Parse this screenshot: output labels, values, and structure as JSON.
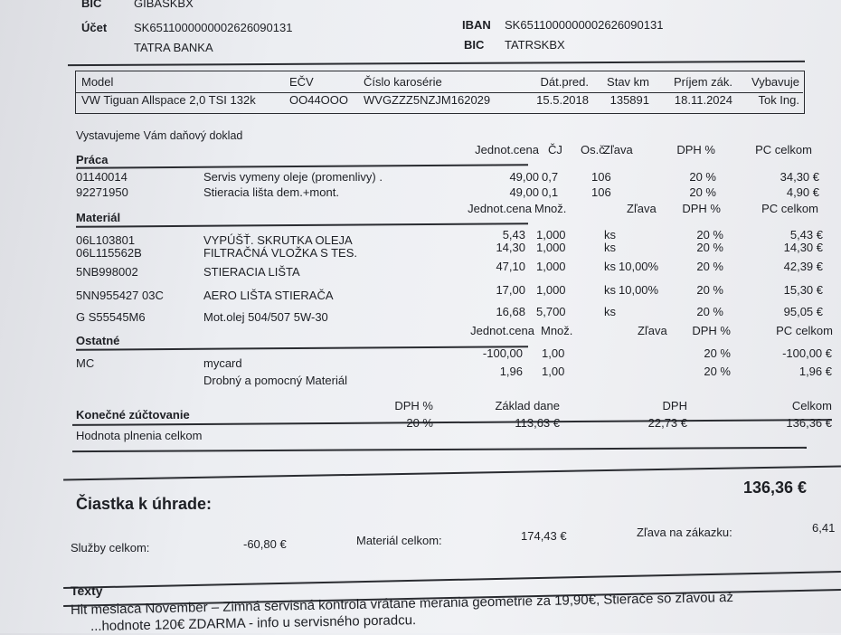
{
  "bank": {
    "bic_label": "BIC",
    "bic1": "GIBASKBX",
    "ucet_label": "Účet",
    "ucet": "SK6511000000002626090131",
    "bank_name": "TATRA BANKA",
    "iban_label": "IBAN",
    "iban": "SK6511000000002626090131",
    "bic2_label": "BIC",
    "bic2": "TATRSKBX"
  },
  "vehicle": {
    "headers": [
      "Model",
      "EČV",
      "Číslo karosérie",
      "Dát.pred.",
      "Stav km",
      "Príjem zák.",
      "Vybavuje"
    ],
    "values": [
      "VW Tiguan Allspace 2,0 TSI 132k",
      "OO44OOO",
      "WVGZZZ5NZJM162029",
      "15.5.2018",
      "135891",
      "18.11.2024",
      "Tok Ing."
    ]
  },
  "doc_title": "Vystavujeme Vám daňový doklad",
  "praca": {
    "title": "Práca",
    "headers": [
      "Jednot.cena",
      "ČJ",
      "Os.č.",
      "Zľava",
      "DPH %",
      "PC celkom"
    ],
    "rows": [
      [
        "01140014",
        "Servis vymeny oleje (promenlivy) .",
        "49,00",
        "0,7",
        "106",
        "",
        "20 %",
        "34,30 €"
      ],
      [
        "92271950",
        "Stieracia lišta dem.+mont.",
        "49,00",
        "0,1",
        "106",
        "",
        "20 %",
        "4,90 €"
      ]
    ]
  },
  "material": {
    "title": "Materiál",
    "headers": [
      "Jednot.cena",
      "Množ.",
      "Zľava",
      "DPH %",
      "PC celkom"
    ],
    "rows": [
      [
        "06L103801",
        "VYPÚŠŤ. SKRUTKA OLEJA",
        "5,43",
        "1,000",
        "ks",
        "",
        "20 %",
        "5,43 €"
      ],
      [
        "06L115562B",
        "FILTRAČNÁ VLOŽKA S TES.",
        "14,30",
        "1,000",
        "ks",
        "",
        "20 %",
        "14,30 €"
      ],
      [
        "5NB998002",
        "STIERACIA LIŠTA",
        "47,10",
        "1,000",
        "ks",
        "10,00%",
        "20 %",
        "42,39 €"
      ],
      [
        "5NN955427  03C",
        "AERO LIŠTA STIERAČA",
        "17,00",
        "1,000",
        "ks",
        "10,00%",
        "20 %",
        "15,30 €"
      ],
      [
        "G  S55545M6",
        "Mot.olej 504/507 5W-30",
        "16,68",
        "5,700",
        "ks",
        "",
        "20 %",
        "95,05 €"
      ]
    ]
  },
  "ostatne": {
    "title": "Ostatné",
    "headers": [
      "Jednot.cena",
      "Množ.",
      "Zľava",
      "DPH %",
      "PC celkom"
    ],
    "rows": [
      [
        "MC",
        "mycard",
        "-100,00",
        "1,00",
        "20 %",
        "-100,00 €"
      ],
      [
        "",
        "Drobný a pomocný Materiál",
        "1,96",
        "1,00",
        "20 %",
        "1,96 €"
      ]
    ]
  },
  "zuctovanie": {
    "title": "Konečné zúčtovanie",
    "headers": [
      "DPH %",
      "Základ dane",
      "DPH",
      "Celkom"
    ],
    "row_label": "Hodnota plnenia celkom",
    "values": [
      "20 %",
      "113,63 €",
      "22,73 €",
      "136,36 €"
    ]
  },
  "total": {
    "label": "Čiastka k úhrade:",
    "value": "136,36 €"
  },
  "summary": {
    "sluzby_label": "Služby celkom:",
    "sluzby": "-60,80 €",
    "material_label": "Materiál celkom:",
    "material": "174,43 €",
    "zlava_label": "Zľava na zákazku:",
    "zlava": "6,41"
  },
  "texty": {
    "title": "Texty",
    "line1": "Hit mesiaca November –  Zimná servisná kontrola vrátane merania geometrie za 19,90€, Stierače so zľavou až",
    "line2": "...hodnote 120€ ZDARMA - info u servisného poradcu."
  }
}
